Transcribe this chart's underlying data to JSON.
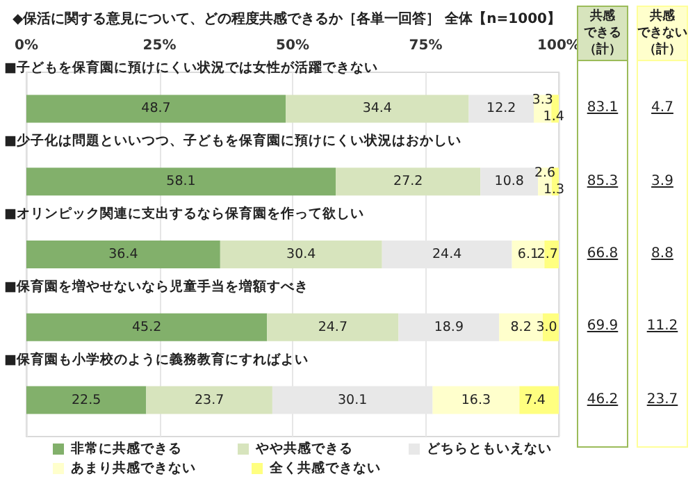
{
  "chart_data": {
    "type": "bar",
    "orientation": "horizontal",
    "stacked": true,
    "title": "◆保活に関する意見について、どの程度共感できるか［各単一回答］ 全体【n=1000】",
    "categories": [
      "■子どもを保育園に預けにくい状況では女性が活躍できない",
      "■少子化は問題といいつつ、子どもを保育園に預けにくい状況はおかしい",
      "■オリンピック関連に支出するなら保育園を作って欲しい",
      "■保育園を増やせないなら児童手当を増額すべき",
      "■保育園も小学校のように義務教育にすればよい"
    ],
    "series": [
      {
        "name": "非常に共感できる",
        "color": "#82b06b",
        "values": [
          48.7,
          58.1,
          36.4,
          45.2,
          22.5
        ],
        "value_labels": [
          "48.7",
          "58.1",
          "36.4",
          "45.2",
          "22.5"
        ]
      },
      {
        "name": "やや共感できる",
        "color": "#d7e4bd",
        "values": [
          34.4,
          27.2,
          30.4,
          24.7,
          23.7
        ],
        "value_labels": [
          "34.4",
          "27.2",
          "30.4",
          "24.7",
          "23.7"
        ]
      },
      {
        "name": "どちらともいえない",
        "color": "#e8e8e8",
        "values": [
          12.2,
          10.8,
          24.4,
          18.9,
          30.1
        ],
        "value_labels": [
          "12.2",
          "10.8",
          "24.4",
          "18.9",
          "30.1"
        ]
      },
      {
        "name": "あまり共感できない",
        "color": "#ffffcc",
        "values": [
          3.3,
          2.6,
          6.1,
          8.2,
          16.3
        ],
        "value_labels": [
          "3.3",
          "2.6",
          "6.1",
          "8.2",
          "16.3"
        ]
      },
      {
        "name": "全く共感できない",
        "color": "#ffff80",
        "values": [
          1.4,
          1.3,
          2.7,
          3.0,
          7.4
        ],
        "value_labels": [
          "1.4",
          "1.3",
          "2.7",
          "3.0",
          "7.4"
        ]
      }
    ],
    "xlim": [
      0,
      100
    ],
    "xticks": [
      {
        "value": 0,
        "label": "0%"
      },
      {
        "value": 25,
        "label": "25%"
      },
      {
        "value": 50,
        "label": "50%"
      },
      {
        "value": 75,
        "label": "75%"
      },
      {
        "value": 100,
        "label": "100%"
      }
    ],
    "grid": "x",
    "legend": "bottom",
    "annotations": [
      "共感できる（計）",
      "共感できない（計）",
      "83.1",
      "85.3",
      "66.8",
      "69.9",
      "46.2",
      "4.7",
      "3.9",
      "8.8",
      "11.2",
      "23.7"
    ]
  }
}
